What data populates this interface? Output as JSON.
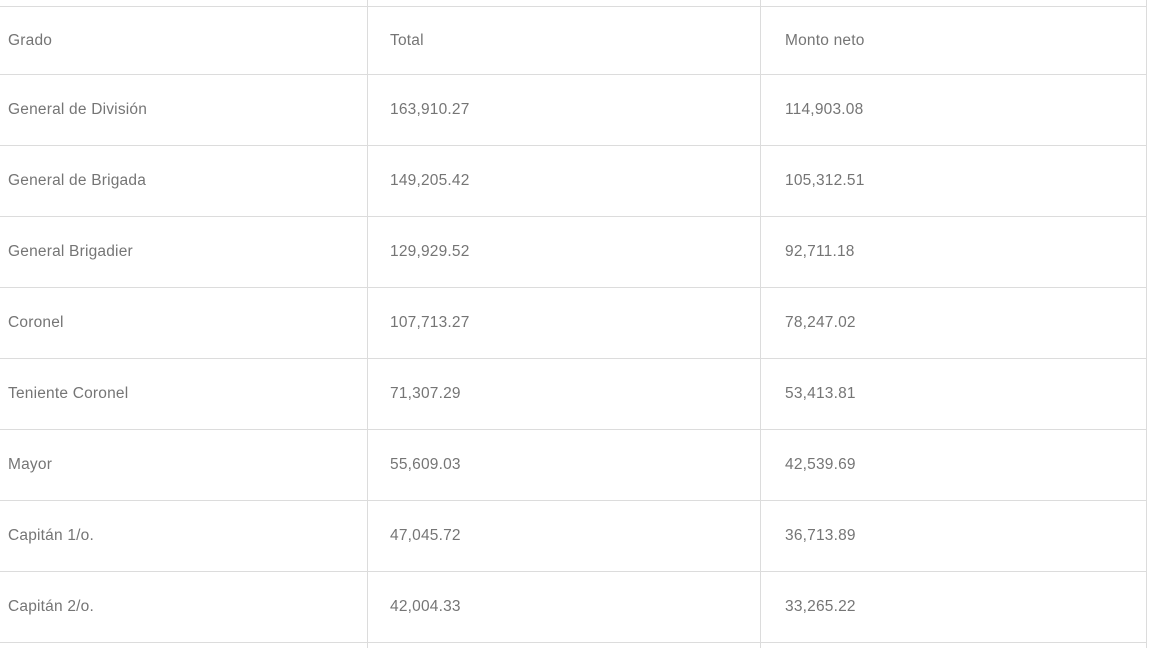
{
  "colors": {
    "border": "#dcdcdc",
    "text": "#757575",
    "background": "#ffffff"
  },
  "table": {
    "columns": [
      {
        "key": "grado",
        "label": "Grado"
      },
      {
        "key": "total",
        "label": "Total"
      },
      {
        "key": "monto_neto",
        "label": "Monto neto"
      }
    ],
    "rows": [
      {
        "grado": "General de División",
        "total": "163,910.27",
        "monto_neto": "114,903.08"
      },
      {
        "grado": "General de Brigada",
        "total": "149,205.42",
        "monto_neto": "105,312.51"
      },
      {
        "grado": "General Brigadier",
        "total": "129,929.52",
        "monto_neto": "92,711.18"
      },
      {
        "grado": "Coronel",
        "total": "107,713.27",
        "monto_neto": "78,247.02"
      },
      {
        "grado": "Teniente Coronel",
        "total": "71,307.29",
        "monto_neto": "53,413.81"
      },
      {
        "grado": "Mayor",
        "total": "55,609.03",
        "monto_neto": "42,539.69"
      },
      {
        "grado": "Capitán 1/o.",
        "total": "47,045.72",
        "monto_neto": "36,713.89"
      },
      {
        "grado": "Capitán 2/o.",
        "total": "42,004.33",
        "monto_neto": "33,265.22"
      }
    ]
  }
}
